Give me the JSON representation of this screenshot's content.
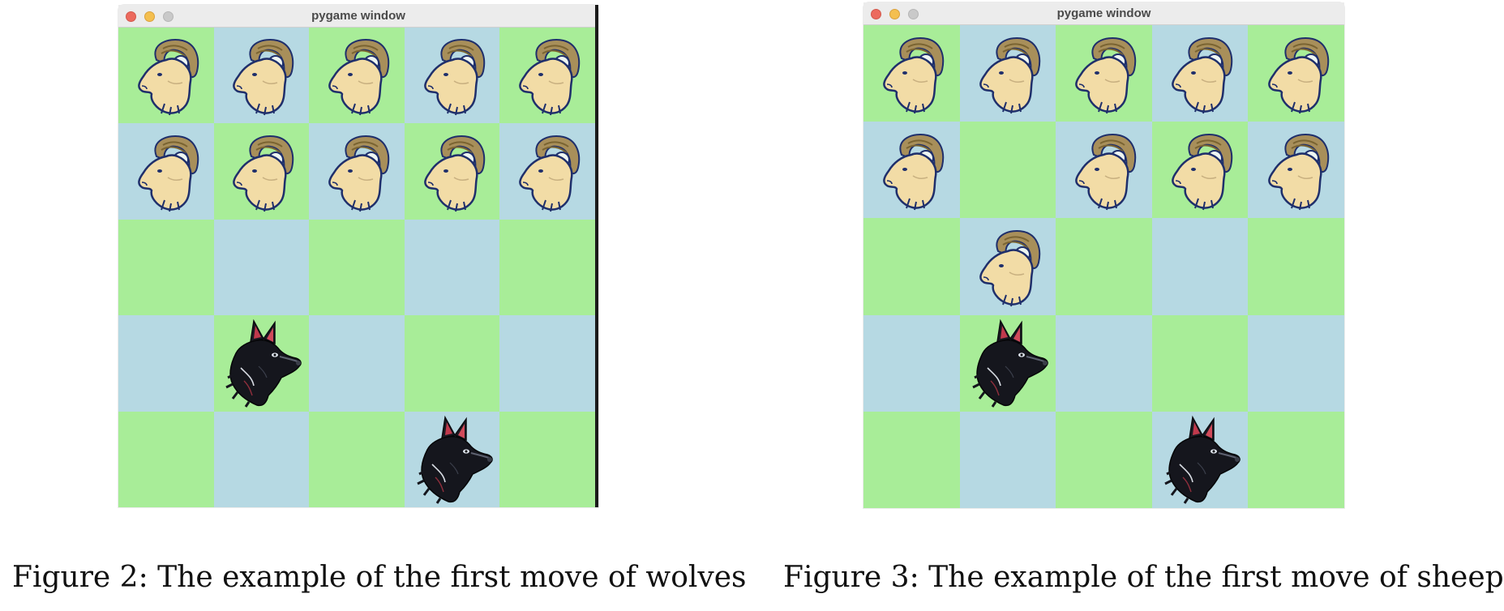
{
  "windows": [
    {
      "title": "pygame window",
      "board": [
        [
          "sheep",
          "sheep",
          "sheep",
          "sheep",
          "sheep"
        ],
        [
          "sheep",
          "sheep",
          "sheep",
          "sheep",
          "sheep"
        ],
        [
          "",
          "",
          "",
          "",
          ""
        ],
        [
          "",
          "wolf",
          "",
          "",
          ""
        ],
        [
          "",
          "",
          "",
          "wolf",
          ""
        ]
      ]
    },
    {
      "title": "pygame window",
      "board": [
        [
          "sheep",
          "sheep",
          "sheep",
          "sheep",
          "sheep"
        ],
        [
          "sheep",
          "",
          "sheep",
          "sheep",
          "sheep"
        ],
        [
          "",
          "sheep",
          "",
          "",
          ""
        ],
        [
          "",
          "wolf",
          "",
          "",
          ""
        ],
        [
          "",
          "",
          "",
          "wolf",
          ""
        ]
      ]
    }
  ],
  "captions": [
    "Figure 2: The example of the first move of wolves",
    "Figure 3: The example of the first move of sheep"
  ],
  "colors": {
    "green_square": "#a8ed98",
    "blue_square": "#b6d9e3",
    "titlebar": "#ececec"
  },
  "icons": {
    "sheep": "ram-head-icon",
    "wolf": "wolf-head-icon"
  }
}
